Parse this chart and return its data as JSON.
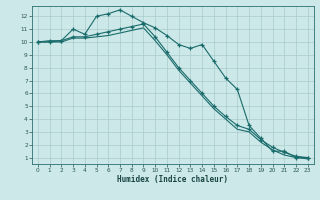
{
  "xlabel": "Humidex (Indice chaleur)",
  "background_color": "#cce8e8",
  "grid_color": "#aacccc",
  "line_color": "#1a6b6b",
  "xlim": [
    -0.5,
    23.5
  ],
  "ylim": [
    0.5,
    12.8
  ],
  "xticks": [
    0,
    1,
    2,
    3,
    4,
    5,
    6,
    7,
    8,
    9,
    10,
    11,
    12,
    13,
    14,
    15,
    16,
    17,
    18,
    19,
    20,
    21,
    22,
    23
  ],
  "yticks": [
    1,
    2,
    3,
    4,
    5,
    6,
    7,
    8,
    9,
    10,
    11,
    12
  ],
  "line1_y": [
    10.0,
    10.1,
    10.1,
    11.0,
    10.6,
    12.0,
    12.2,
    12.5,
    12.0,
    11.5,
    11.1,
    10.5,
    9.8,
    9.5,
    9.8,
    8.5,
    7.2,
    6.3,
    3.5,
    2.5,
    1.5,
    1.5,
    1.0,
    1.0
  ],
  "line2_y": [
    10.0,
    10.0,
    10.1,
    10.4,
    10.4,
    10.6,
    10.8,
    11.0,
    11.2,
    11.4,
    10.4,
    9.2,
    8.0,
    7.0,
    6.0,
    5.0,
    4.2,
    3.5,
    3.2,
    2.4,
    1.8,
    1.4,
    1.1,
    1.0
  ],
  "line3_y": [
    10.0,
    10.0,
    10.0,
    10.3,
    10.3,
    10.4,
    10.5,
    10.7,
    10.9,
    11.1,
    10.1,
    9.0,
    7.8,
    6.8,
    5.8,
    4.8,
    4.0,
    3.2,
    3.0,
    2.2,
    1.6,
    1.2,
    1.0,
    0.9
  ]
}
